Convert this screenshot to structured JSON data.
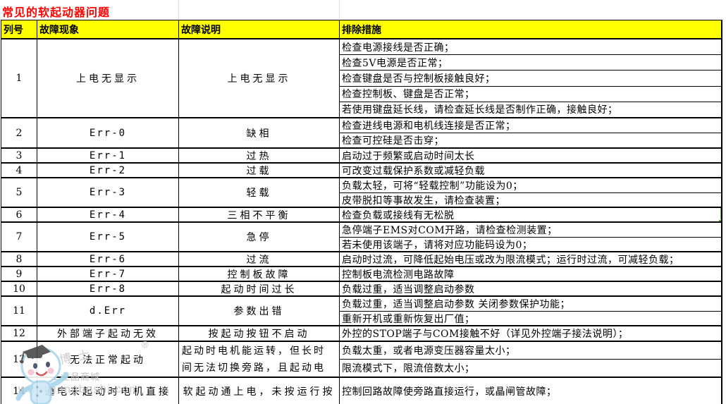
{
  "title": "常见的软起动器问题",
  "columns": [
    "列号",
    "故障现象",
    "故障说明",
    "排除措施"
  ],
  "rows": [
    {
      "no": "1",
      "phenomenon": "上电无显示",
      "description": "上电无显示",
      "measures": [
        "检查电源接线是否正确；",
        "检查5V电源是否正常；",
        "检查键盘是否与控制板接触良好；",
        "检查控制板、键盘是否正常；",
        "若使用键盘延长线，请检查延长线是否制作正确，接触良好；"
      ]
    },
    {
      "no": "2",
      "phenomenon": "Err-0",
      "description": "缺相",
      "measures": [
        "检查进线电源和电机线连接是否正常；",
        "检查可控硅是否击穿；"
      ]
    },
    {
      "no": "3",
      "phenomenon": "Err-1",
      "description": "过热",
      "measures": [
        "启动过于频繁或启动时间太长"
      ]
    },
    {
      "no": "4",
      "phenomenon": "Err-2",
      "description": "过载",
      "measures": [
        "可改变过载保护系数或减轻负载"
      ]
    },
    {
      "no": "5",
      "phenomenon": "Err-3",
      "description": "轻载",
      "measures": [
        "负载太轻，可将“轻载控制”功能设为0；",
        "皮带脱扣等事故发生，请检查装置；"
      ]
    },
    {
      "no": "6",
      "phenomenon": "Err-4",
      "description": "三相不平衡",
      "selected": true,
      "measures": [
        "检查负载或接线有无松脱"
      ]
    },
    {
      "no": "7",
      "phenomenon": "Err-5",
      "description": "急停",
      "measures": [
        "急停端子EMS对COM开路，请检查检测装置；",
        "若未使用该端子，请将对应功能码设为0；"
      ]
    },
    {
      "no": "8",
      "phenomenon": "Err-6",
      "description": "过流",
      "measures": [
        "启动时过流，可降低起始电压或改为限流模式；运行时过流，可减轻负载；"
      ]
    },
    {
      "no": "9",
      "phenomenon": "Err-7",
      "description": "控制板故障",
      "measures": [
        "控制板电流检测电路故障"
      ]
    },
    {
      "no": "10",
      "phenomenon": "Err-8",
      "description": "起动时间过长",
      "measures": [
        "负载过重，适当调整启动参数"
      ]
    },
    {
      "no": "11",
      "phenomenon": "d.Err",
      "description": "参数出错",
      "measures": [
        "负载过重，适当调整启动参数 关闭参数保护功能；",
        "重新开机或重新恢复出厂值；"
      ]
    },
    {
      "no": "12",
      "phenomenon": "外部端子起动无效",
      "description": "按起动按钮不启动",
      "measures": [
        "外控的STOP端子与COM接触不好（详见外控端子接法说明）；"
      ]
    },
    {
      "no": "13",
      "phenomenon": "无法正常起动",
      "description": "起动时电机能运转，但长时间无法切换旁路，且起动电",
      "measures": [
        "负载太重，或者电源变压器容量太小；",
        "限流模式下，限流倍数太小；"
      ]
    },
    {
      "no": "14",
      "phenomenon": "通电未起动时电机直接",
      "description": "软起动通上电，未按运行按",
      "measures": [
        "控制回路故障使旁路直接运行，或晶闸管故障；"
      ]
    }
  ],
  "watermark": {
    "registered": "®",
    "brand": "工博士",
    "mall": "工业品商城",
    "url": "www.gongboshi.com"
  },
  "colors": {
    "title_text": "#FF0000",
    "header_bg": "#FFFF00",
    "grid_border": "#000000",
    "selection_green": "#6AA84F",
    "watermark_gray": "#C6C6C6"
  }
}
